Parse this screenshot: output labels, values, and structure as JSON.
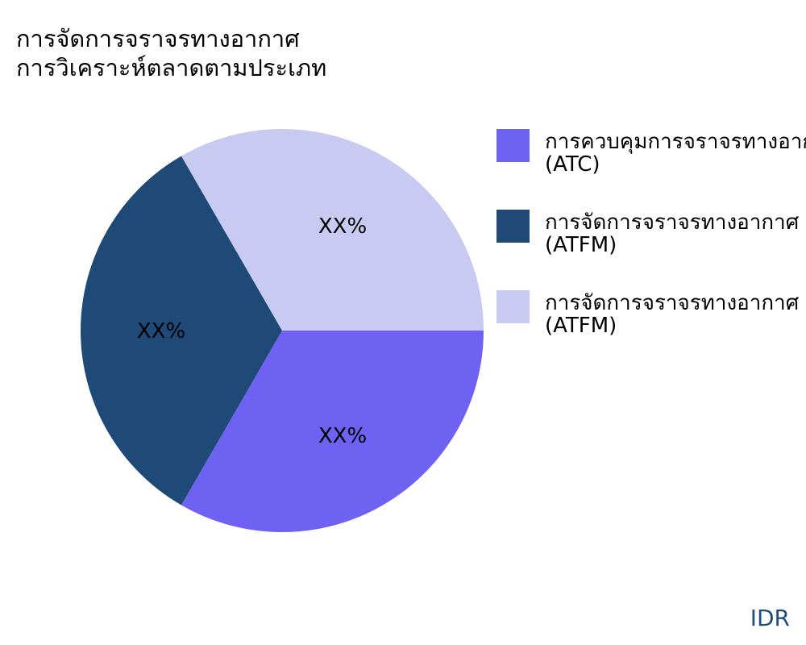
{
  "title": [
    "การจัดการจราจรทางอากาศ",
    "การวิเคราะห์ตลาดตามประเภท"
  ],
  "chart_data": {
    "type": "pie",
    "title": "การจัดการจราจรทางอากาศ การวิเคราะห์ตลาดตามประเภท",
    "slices": [
      {
        "name": "การควบคุมการจราจรทางอากาศ",
        "abbr": "(ATC)",
        "value": 33.33,
        "label": "XX%",
        "color": "#6f62f2"
      },
      {
        "name": "การจัดการจราจรทางอากาศ",
        "abbr": "(ATFM)",
        "value": 33.33,
        "label": "XX%",
        "color": "#1f4a78"
      },
      {
        "name": "การจัดการจราจรทางอากาศ",
        "abbr": "(ATFM)",
        "value": 33.33,
        "label": "XX%",
        "color": "#c9caf1"
      }
    ],
    "legend_position": "right"
  },
  "footer": "IDR"
}
